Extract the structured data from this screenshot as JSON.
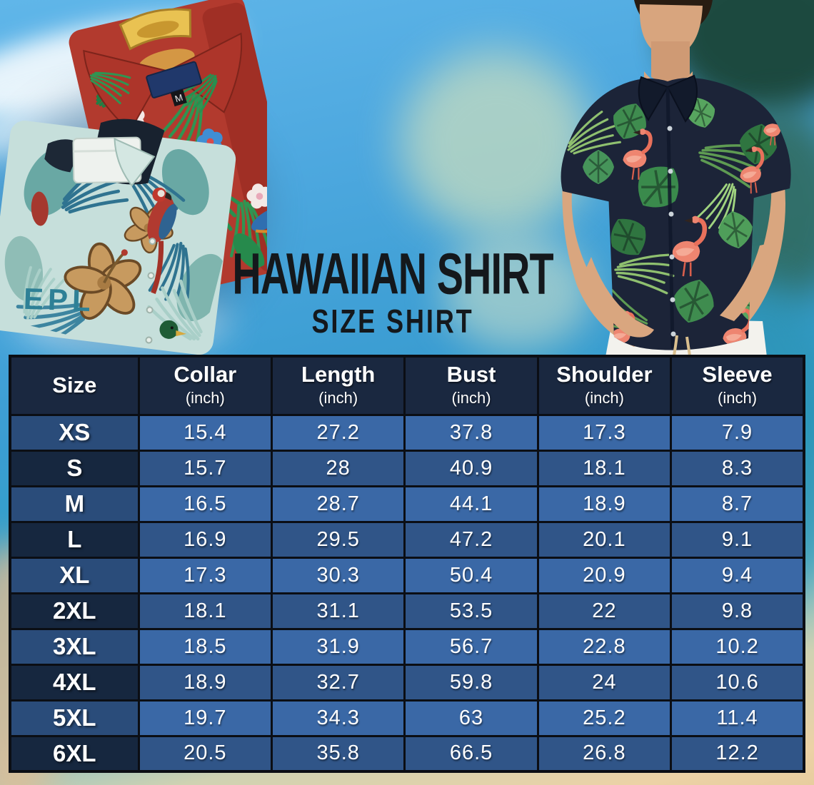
{
  "header": {
    "title": "HAWAIIAN SHIRT",
    "subtitle": "SIZE SHIRT"
  },
  "shirt_photo": {
    "print_text": "EPL",
    "size_tag": "M"
  },
  "size_table": {
    "columns": [
      {
        "label": "Size",
        "unit": ""
      },
      {
        "label": "Collar",
        "unit": "(inch)"
      },
      {
        "label": "Length",
        "unit": "(inch)"
      },
      {
        "label": "Bust",
        "unit": "(inch)"
      },
      {
        "label": "Shoulder",
        "unit": "(inch)"
      },
      {
        "label": "Sleeve",
        "unit": "(inch)"
      }
    ],
    "rows": [
      {
        "size": "XS",
        "values": [
          "15.4",
          "27.2",
          "37.8",
          "17.3",
          "7.9"
        ]
      },
      {
        "size": "S",
        "values": [
          "15.7",
          "28",
          "40.9",
          "18.1",
          "8.3"
        ]
      },
      {
        "size": "M",
        "values": [
          "16.5",
          "28.7",
          "44.1",
          "18.9",
          "8.7"
        ]
      },
      {
        "size": "L",
        "values": [
          "16.9",
          "29.5",
          "47.2",
          "20.1",
          "9.1"
        ]
      },
      {
        "size": "XL",
        "values": [
          "17.3",
          "30.3",
          "50.4",
          "20.9",
          "9.4"
        ]
      },
      {
        "size": "2XL",
        "values": [
          "18.1",
          "31.1",
          "53.5",
          "22",
          "9.8"
        ]
      },
      {
        "size": "3XL",
        "values": [
          "18.5",
          "31.9",
          "56.7",
          "22.8",
          "10.2"
        ]
      },
      {
        "size": "4XL",
        "values": [
          "18.9",
          "32.7",
          "59.8",
          "24",
          "10.6"
        ]
      },
      {
        "size": "5XL",
        "values": [
          "19.7",
          "34.3",
          "63",
          "25.2",
          "11.4"
        ]
      },
      {
        "size": "6XL",
        "values": [
          "20.5",
          "35.8",
          "66.5",
          "26.8",
          "12.2"
        ]
      }
    ]
  },
  "colors": {
    "table-header-bg": "#1a2840",
    "row-light-bg": "#3a68a6",
    "row-dark-bg": "#305588",
    "size-light-bg": "#2a4c7a",
    "size-dark-bg": "#16273f",
    "table-border": "#0b0e14",
    "table-text": "#ffffff",
    "title-ink": "#14181c",
    "sky-blue": "#53abe0",
    "sea-teal": "#2f9fc6",
    "sand": "#ecd2a6",
    "model-shirt-navy": "#1c2438",
    "red-shirt": "#b23a2e",
    "teal-shirt": "#c6dfdb",
    "leaf-green": "#3e8f4e",
    "flamingo-pink": "#ee8570"
  }
}
